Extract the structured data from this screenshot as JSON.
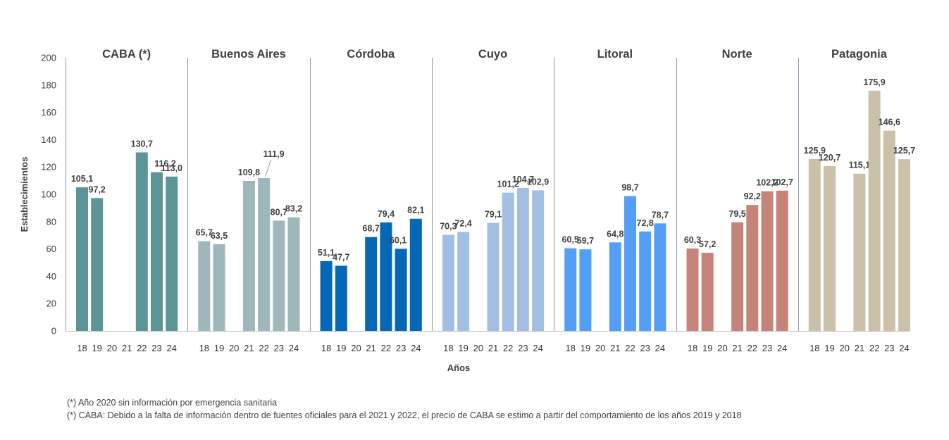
{
  "chart_data": {
    "type": "bar",
    "ylabel": "Establecimientos",
    "xlabel": "Años",
    "ylim": [
      0,
      200
    ],
    "yticks": [
      0,
      20,
      40,
      60,
      80,
      100,
      120,
      140,
      160,
      180,
      200
    ],
    "categories": [
      "18",
      "19",
      "20",
      "21",
      "22",
      "23",
      "24"
    ],
    "series": [
      {
        "name": "CABA (*)",
        "color": "#5b9597",
        "values": [
          105.1,
          97.2,
          null,
          null,
          130.7,
          116.2,
          113.0
        ],
        "labels": [
          "105,1",
          "97,2",
          "",
          "",
          "130,7",
          "116,2",
          "113,0"
        ]
      },
      {
        "name": "Buenos Aires",
        "color": "#9db7bb",
        "values": [
          65.7,
          63.5,
          null,
          109.8,
          111.9,
          80.7,
          83.2
        ],
        "labels": [
          "65,7",
          "63,5",
          "",
          "109,8",
          "111,9",
          "80,7",
          "83,2"
        ]
      },
      {
        "name": "Córdoba",
        "color": "#0568b6",
        "values": [
          51.1,
          47.7,
          null,
          68.7,
          79.4,
          60.1,
          82.1
        ],
        "labels": [
          "51,1",
          "47,7",
          "",
          "68,7",
          "79,4",
          "60,1",
          "82,1"
        ]
      },
      {
        "name": "Cuyo",
        "color": "#a2bfe3",
        "values": [
          70.3,
          72.4,
          null,
          79.1,
          101.2,
          104.7,
          102.9
        ],
        "labels": [
          "70,3",
          "72,4",
          "",
          "79,1",
          "101,2",
          "104,7",
          "102,9"
        ]
      },
      {
        "name": "Litoral",
        "color": "#559ef6",
        "values": [
          60.5,
          59.7,
          null,
          64.8,
          98.7,
          72.8,
          78.7
        ],
        "labels": [
          "60,5",
          "59,7",
          "",
          "64,8",
          "98,7",
          "72,8",
          "78,7"
        ]
      },
      {
        "name": "Norte",
        "color": "#c5837a",
        "values": [
          60.3,
          57.2,
          null,
          79.5,
          92.2,
          102.2,
          102.7
        ],
        "labels": [
          "60,3",
          "57,2",
          "",
          "79,5",
          "92,2",
          "102,2",
          "102,7"
        ]
      },
      {
        "name": "Patagonia",
        "color": "#cbc0a8",
        "values": [
          125.9,
          120.7,
          null,
          115.1,
          175.9,
          146.6,
          125.7
        ],
        "labels": [
          "125,9",
          "120,7",
          "",
          "115,1",
          "175,9",
          "146,6",
          "125,7"
        ]
      }
    ],
    "grid": false,
    "legend": "none"
  },
  "footnotes": [
    "(*) Año 2020 sin información por emergencia sanitaria",
    "(*) CABA: Debido a la falta de información dentro de fuentes oficiales para el 2021 y 2022, el precio de CABA se estimo a partir del comportamiento de los años 2019 y 2018"
  ]
}
